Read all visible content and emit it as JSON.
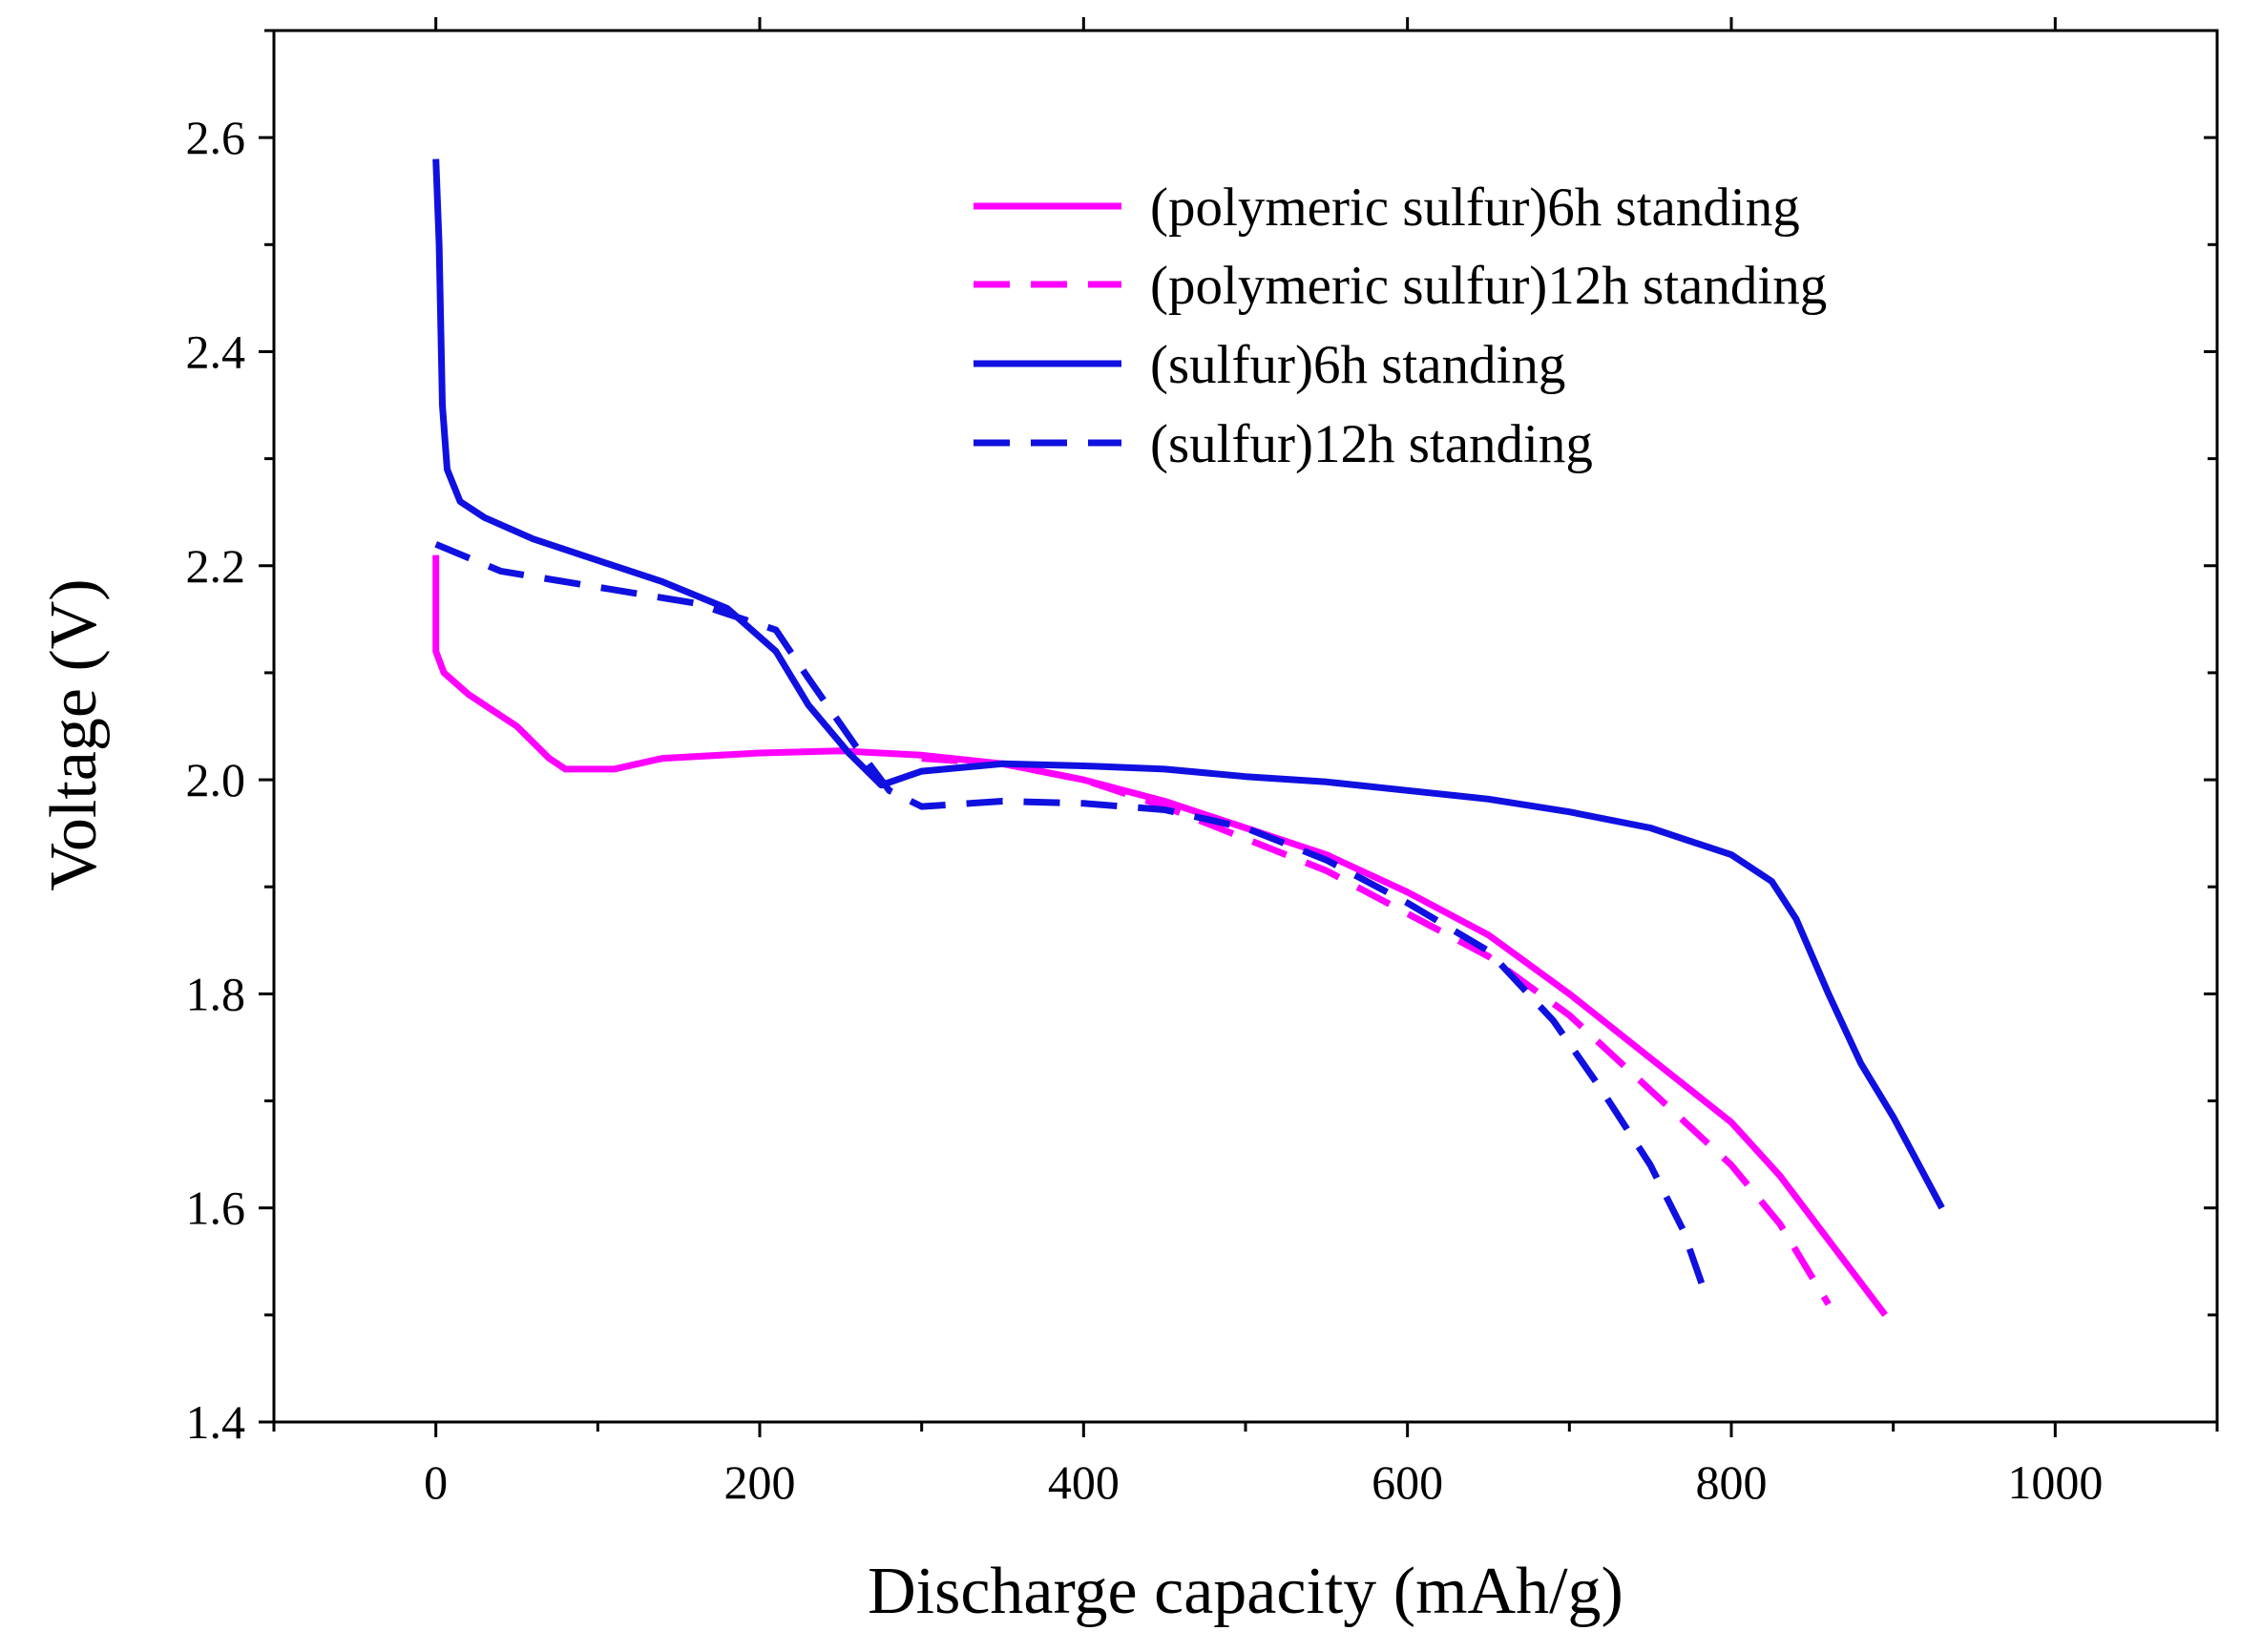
{
  "chart_data": {
    "type": "line",
    "title": "",
    "xlabel": "Discharge capacity (mAh/g)",
    "ylabel": "Voltage (V)",
    "xlim": [
      -100,
      1100
    ],
    "ylim": [
      1.4,
      2.7
    ],
    "x_ticks": [
      0,
      200,
      400,
      600,
      800,
      1000
    ],
    "x_tick_labels": [
      "0",
      "200",
      "400",
      "600",
      "800",
      "1000"
    ],
    "y_ticks": [
      1.4,
      1.6,
      1.8,
      2.0,
      2.2,
      2.4,
      2.6
    ],
    "y_tick_labels": [
      "1.4",
      "1.6",
      "1.8",
      "2.0",
      "2.2",
      "2.4",
      "2.6"
    ],
    "grid": false,
    "legend_position": "top-right",
    "series": [
      {
        "name": "(polymeric sulfur)6h standing",
        "color": "#ff00ff",
        "dash": "solid",
        "points": [
          [
            0,
            2.21
          ],
          [
            0,
            2.12
          ],
          [
            5,
            2.1
          ],
          [
            20,
            2.08
          ],
          [
            50,
            2.05
          ],
          [
            70,
            2.02
          ],
          [
            80,
            2.01
          ],
          [
            110,
            2.01
          ],
          [
            140,
            2.02
          ],
          [
            200,
            2.025
          ],
          [
            250,
            2.027
          ],
          [
            300,
            2.023
          ],
          [
            350,
            2.015
          ],
          [
            400,
            2.0
          ],
          [
            450,
            1.98
          ],
          [
            500,
            1.955
          ],
          [
            550,
            1.93
          ],
          [
            600,
            1.895
          ],
          [
            650,
            1.855
          ],
          [
            700,
            1.8
          ],
          [
            750,
            1.74
          ],
          [
            800,
            1.68
          ],
          [
            830,
            1.63
          ],
          [
            860,
            1.57
          ],
          [
            895,
            1.5
          ]
        ]
      },
      {
        "name": "(polymeric sulfur)12h standing",
        "color": "#ff00ff",
        "dash": "dashed",
        "points": [
          [
            300,
            2.02
          ],
          [
            350,
            2.015
          ],
          [
            400,
            2.0
          ],
          [
            450,
            1.975
          ],
          [
            500,
            1.945
          ],
          [
            550,
            1.915
          ],
          [
            600,
            1.875
          ],
          [
            650,
            1.835
          ],
          [
            700,
            1.78
          ],
          [
            750,
            1.71
          ],
          [
            800,
            1.64
          ],
          [
            830,
            1.585
          ],
          [
            860,
            1.51
          ]
        ]
      },
      {
        "name": "(sulfur)6h standing",
        "color": "#1010e0",
        "dash": "solid",
        "points": [
          [
            0,
            2.58
          ],
          [
            2,
            2.5
          ],
          [
            4,
            2.35
          ],
          [
            7,
            2.29
          ],
          [
            15,
            2.26
          ],
          [
            30,
            2.245
          ],
          [
            60,
            2.225
          ],
          [
            100,
            2.205
          ],
          [
            140,
            2.185
          ],
          [
            180,
            2.16
          ],
          [
            210,
            2.12
          ],
          [
            230,
            2.07
          ],
          [
            255,
            2.025
          ],
          [
            275,
            1.995
          ],
          [
            300,
            2.008
          ],
          [
            350,
            2.015
          ],
          [
            400,
            2.013
          ],
          [
            450,
            2.01
          ],
          [
            500,
            2.003
          ],
          [
            550,
            1.998
          ],
          [
            600,
            1.99
          ],
          [
            650,
            1.982
          ],
          [
            700,
            1.97
          ],
          [
            750,
            1.955
          ],
          [
            800,
            1.93
          ],
          [
            825,
            1.905
          ],
          [
            840,
            1.87
          ],
          [
            860,
            1.8
          ],
          [
            880,
            1.735
          ],
          [
            900,
            1.685
          ],
          [
            930,
            1.6
          ]
        ]
      },
      {
        "name": "(sulfur)12h standing",
        "color": "#1010e0",
        "dash": "dashed",
        "points": [
          [
            0,
            2.22
          ],
          [
            40,
            2.195
          ],
          [
            100,
            2.18
          ],
          [
            160,
            2.165
          ],
          [
            210,
            2.14
          ],
          [
            230,
            2.095
          ],
          [
            260,
            2.03
          ],
          [
            280,
            1.99
          ],
          [
            300,
            1.975
          ],
          [
            350,
            1.98
          ],
          [
            400,
            1.978
          ],
          [
            450,
            1.972
          ],
          [
            500,
            1.955
          ],
          [
            550,
            1.925
          ],
          [
            600,
            1.885
          ],
          [
            650,
            1.84
          ],
          [
            690,
            1.775
          ],
          [
            720,
            1.71
          ],
          [
            750,
            1.64
          ],
          [
            770,
            1.58
          ],
          [
            785,
            1.515
          ]
        ]
      }
    ]
  }
}
